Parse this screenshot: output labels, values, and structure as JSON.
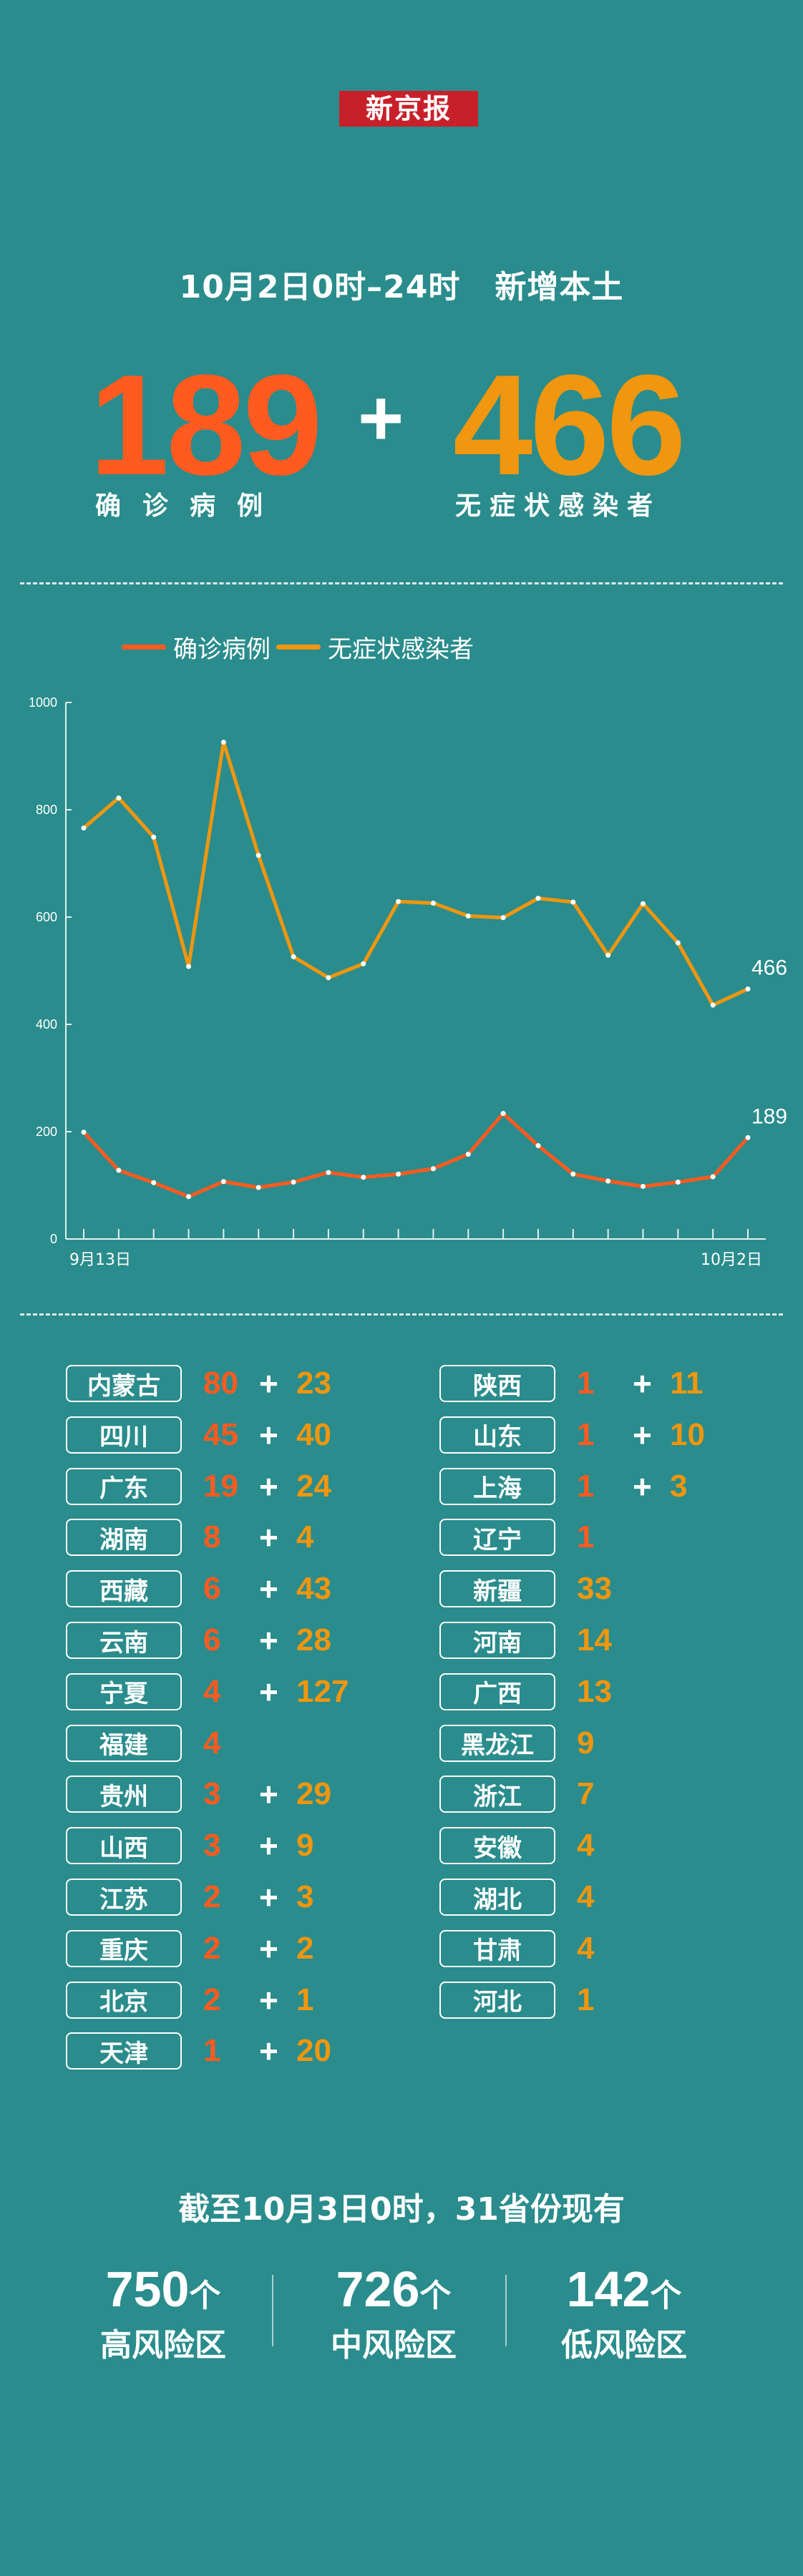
{
  "logo": "新京报",
  "headline": {
    "date": "10月2日0时–24时",
    "subject": "新增本土"
  },
  "totals": {
    "confirmed": "189",
    "confirmed_label": "确诊病例",
    "plus": "+",
    "asymptomatic": "466",
    "asymptomatic_label": "无症状感染者"
  },
  "colors": {
    "background": "#2a8c8c",
    "confirmed": "#ff5a1f",
    "asymptomatic": "#f0960f"
  },
  "chart_data": {
    "type": "line",
    "x": [
      "9月13日",
      "9月14日",
      "9月15日",
      "9月16日",
      "9月17日",
      "9月18日",
      "9月19日",
      "9月20日",
      "9月21日",
      "9月22日",
      "9月23日",
      "9月24日",
      "9月25日",
      "9月26日",
      "9月27日",
      "9月28日",
      "9月29日",
      "9月30日",
      "10月1日",
      "10月2日"
    ],
    "x_tick_labels": [
      "9月13日",
      "10月2日"
    ],
    "series": [
      {
        "name": "确诊病例",
        "color": "#ff5a1f",
        "values": [
          199,
          128,
          105,
          79,
          107,
          96,
          106,
          124,
          115,
          121,
          131,
          158,
          234,
          174,
          121,
          108,
          98,
          106,
          116,
          189
        ],
        "end_label": "189"
      },
      {
        "name": "无症状感染者",
        "color": "#f0960f",
        "values": [
          766,
          822,
          749,
          508,
          926,
          715,
          526,
          487,
          513,
          629,
          626,
          602,
          599,
          635,
          628,
          529,
          625,
          552,
          436,
          466
        ],
        "end_label": "466"
      }
    ],
    "ylim": [
      0,
      1000
    ],
    "yticks": [
      "0",
      "200",
      "400",
      "600",
      "800",
      "1000"
    ],
    "legend": "top-left",
    "grid": false
  },
  "provinces_left": [
    {
      "name": "内蒙古",
      "confirmed": "80",
      "plus": "+",
      "asym": "23"
    },
    {
      "name": "四川",
      "confirmed": "45",
      "plus": "+",
      "asym": "40"
    },
    {
      "name": "广东",
      "confirmed": "19",
      "plus": "+",
      "asym": "24"
    },
    {
      "name": "湖南",
      "confirmed": "8",
      "plus": "+",
      "asym": "4"
    },
    {
      "name": "西藏",
      "confirmed": "6",
      "plus": "+",
      "asym": "43"
    },
    {
      "name": "云南",
      "confirmed": "6",
      "plus": "+",
      "asym": "28"
    },
    {
      "name": "宁夏",
      "confirmed": "4",
      "plus": "+",
      "asym": "127"
    },
    {
      "name": "福建",
      "confirmed": "4",
      "plus": "",
      "asym": ""
    },
    {
      "name": "贵州",
      "confirmed": "3",
      "plus": "+",
      "asym": "29"
    },
    {
      "name": "山西",
      "confirmed": "3",
      "plus": "+",
      "asym": "9"
    },
    {
      "name": "江苏",
      "confirmed": "2",
      "plus": "+",
      "asym": "3"
    },
    {
      "name": "重庆",
      "confirmed": "2",
      "plus": "+",
      "asym": "2"
    },
    {
      "name": "北京",
      "confirmed": "2",
      "plus": "+",
      "asym": "1"
    },
    {
      "name": "天津",
      "confirmed": "1",
      "plus": "+",
      "asym": "20"
    }
  ],
  "provinces_right": [
    {
      "name": "陕西",
      "confirmed": "1",
      "plus": "+",
      "asym": "11"
    },
    {
      "name": "山东",
      "confirmed": "1",
      "plus": "+",
      "asym": "10"
    },
    {
      "name": "上海",
      "confirmed": "1",
      "plus": "+",
      "asym": "3"
    },
    {
      "name": "辽宁",
      "confirmed": "1",
      "plus": "",
      "asym": ""
    },
    {
      "name": "新疆",
      "confirmed": "",
      "plus": "",
      "asym": "33"
    },
    {
      "name": "河南",
      "confirmed": "",
      "plus": "",
      "asym": "14"
    },
    {
      "name": "广西",
      "confirmed": "",
      "plus": "",
      "asym": "13"
    },
    {
      "name": "黑龙江",
      "confirmed": "",
      "plus": "",
      "asym": "9"
    },
    {
      "name": "浙江",
      "confirmed": "",
      "plus": "",
      "asym": "7"
    },
    {
      "name": "安徽",
      "confirmed": "",
      "plus": "",
      "asym": "4"
    },
    {
      "name": "湖北",
      "confirmed": "",
      "plus": "",
      "asym": "4"
    },
    {
      "name": "甘肃",
      "confirmed": "",
      "plus": "",
      "asym": "4"
    },
    {
      "name": "河北",
      "confirmed": "",
      "plus": "",
      "asym": "1"
    }
  ],
  "summary": {
    "title": "截至10月3日0时，31省份现有",
    "risk": [
      {
        "count": "750",
        "unit": "个",
        "label": "高风险区"
      },
      {
        "count": "726",
        "unit": "个",
        "label": "中风险区"
      },
      {
        "count": "142",
        "unit": "个",
        "label": "低风险区"
      }
    ]
  }
}
